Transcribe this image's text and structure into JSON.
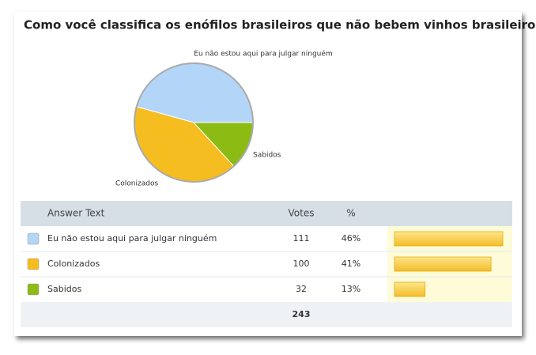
{
  "chart_data": {
    "type": "pie",
    "title": "Como você classifica os enófilos brasileiros que não bebem vinhos brasileiros?",
    "categories": [
      "Eu não estou aqui para julgar ninguém",
      "Colonizados",
      "Sabidos"
    ],
    "values": [
      111,
      100,
      32
    ],
    "colors": [
      "#b3d6f8",
      "#f5bd1f",
      "#8cbb14"
    ]
  },
  "table": {
    "headers": [
      "Answer Text",
      "Votes",
      "%"
    ],
    "percents": [
      46,
      41,
      13
    ],
    "percent_labels": [
      "46%",
      "41%",
      "13%"
    ],
    "total": 243
  }
}
